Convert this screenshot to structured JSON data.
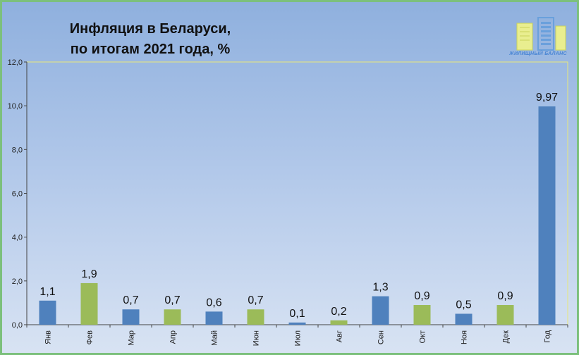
{
  "title_line1": "Инфляция в Беларуси,",
  "title_line2": "по итогам 2021 года, %",
  "logo": {
    "text": "ЖИЛИЩНЫЙ БАЛАНС",
    "icon": "building-logo-icon"
  },
  "colors": {
    "blue": "#4f81bd",
    "green": "#9bbb59",
    "plot_border": "#e8e87a"
  },
  "chart_data": {
    "type": "bar",
    "categories": [
      "Янв",
      "Фев",
      "Мар",
      "Апр",
      "Май",
      "Июн",
      "Июл",
      "Авг",
      "Сен",
      "Окт",
      "Ноя",
      "Дек",
      "Год"
    ],
    "values": [
      1.1,
      1.9,
      0.7,
      0.7,
      0.6,
      0.7,
      0.1,
      0.2,
      1.3,
      0.9,
      0.5,
      0.9,
      9.97
    ],
    "value_labels": [
      "1,1",
      "1,9",
      "0,7",
      "0,7",
      "0,6",
      "0,7",
      "0,1",
      "0,2",
      "1,3",
      "0,9",
      "0,5",
      "0,9",
      "9,97"
    ],
    "bar_colors": [
      "blue",
      "green",
      "blue",
      "green",
      "blue",
      "green",
      "blue",
      "green",
      "blue",
      "green",
      "blue",
      "green",
      "blue"
    ],
    "yticks": [
      0,
      2,
      4,
      6,
      8,
      10,
      12
    ],
    "ytick_labels": [
      "0,0",
      "2,0",
      "4,0",
      "6,0",
      "8,0",
      "10,0",
      "12,0"
    ],
    "ylim": [
      0,
      12
    ],
    "grid": false,
    "legend": "none"
  }
}
